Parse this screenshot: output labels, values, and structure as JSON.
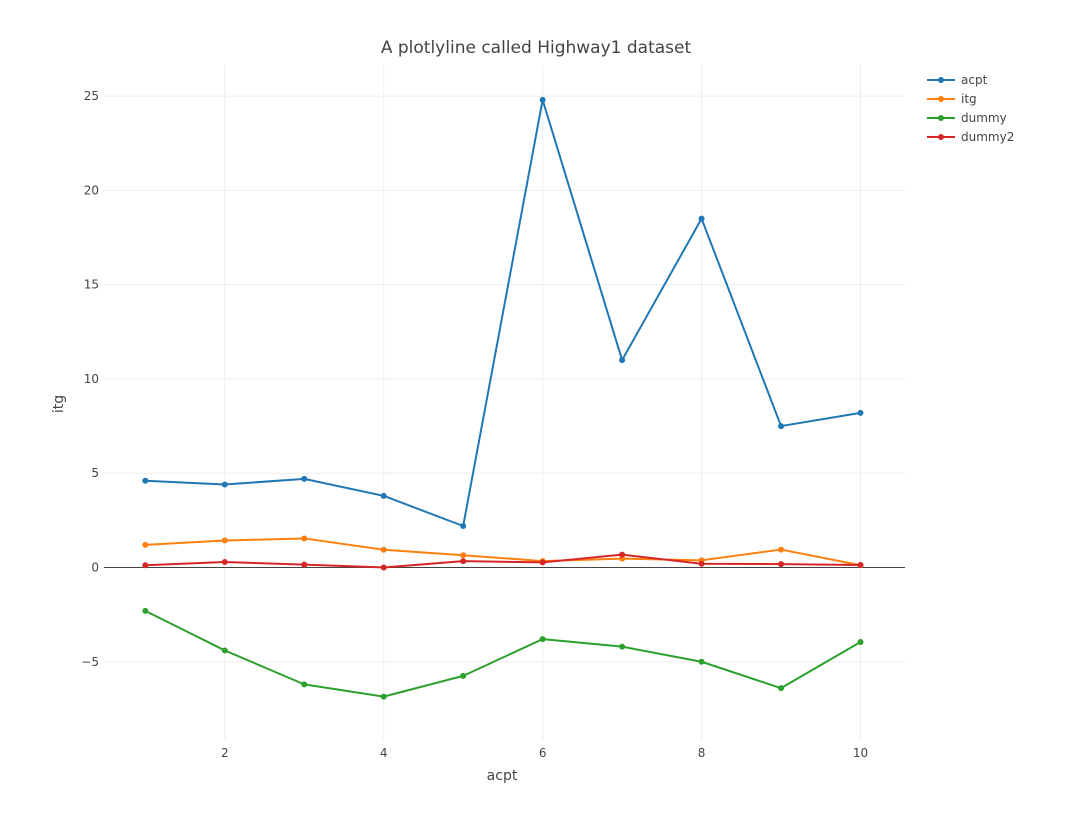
{
  "chart_data": {
    "type": "line",
    "title": "A plotlyline called Highway1 dataset",
    "xlabel": "acpt",
    "ylabel": "itg",
    "x": [
      1,
      2,
      3,
      4,
      5,
      6,
      7,
      8,
      9,
      10
    ],
    "xlim": [
      0.48,
      10.56
    ],
    "ylim": [
      -9.15,
      26.65
    ],
    "xticks": [
      2,
      4,
      6,
      8,
      10
    ],
    "xtick_labels": [
      "2",
      "4",
      "6",
      "8",
      "10"
    ],
    "yticks": [
      -5,
      0,
      5,
      10,
      15,
      20,
      25
    ],
    "ytick_labels": [
      "−5",
      "0",
      "5",
      "10",
      "15",
      "20",
      "25"
    ],
    "grid": true,
    "legend_position": "top-right",
    "series": [
      {
        "name": "acpt",
        "color": "#1f77b4",
        "values": [
          4.6,
          4.4,
          4.7,
          3.8,
          2.2,
          24.8,
          11.0,
          18.5,
          7.5,
          8.2
        ]
      },
      {
        "name": "itg",
        "color": "#ff7f0e",
        "values": [
          1.2,
          1.43,
          1.54,
          0.94,
          0.65,
          0.34,
          0.47,
          0.38,
          0.95,
          0.12
        ]
      },
      {
        "name": "dummy",
        "color": "#2ca02c",
        "values": [
          -2.3,
          -4.4,
          -6.2,
          -6.85,
          -5.75,
          -3.8,
          -4.2,
          -5.0,
          -6.4,
          -3.95
        ]
      },
      {
        "name": "dummy2",
        "color": "#d62728",
        "values": [
          0.12,
          0.29,
          0.15,
          0.0,
          0.34,
          0.27,
          0.68,
          0.2,
          0.18,
          0.13
        ]
      }
    ]
  }
}
